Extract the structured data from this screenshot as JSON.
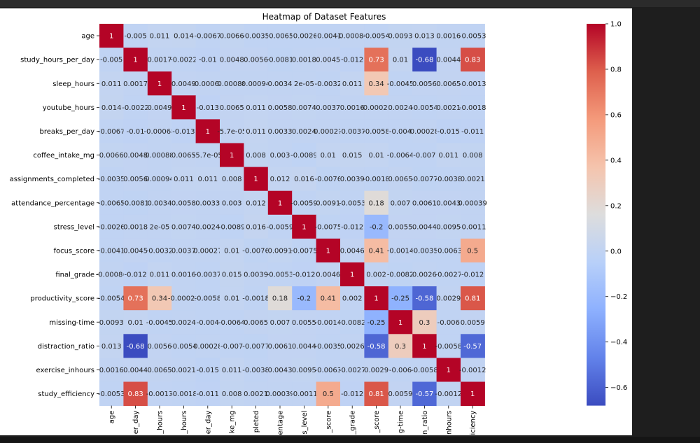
{
  "chart_data": {
    "type": "heatmap",
    "title": "Heatmap of Dataset Features",
    "colormap": "coolwarm",
    "color_range": [
      -0.68,
      1.0
    ],
    "colorbar_ticks": [
      1.0,
      0.8,
      0.6,
      0.4,
      0.2,
      0.0,
      -0.2,
      -0.4,
      -0.6
    ],
    "colorbar_tick_labels": [
      "1.0",
      "0.8",
      "0.6",
      "0.4",
      "0.2",
      "0.0",
      "−0.2",
      "−0.4",
      "−0.6"
    ],
    "row_labels": [
      "age",
      "study_hours_per_day",
      "sleep_hours",
      "youtube_hours",
      "breaks_per_day",
      "coffee_intake_mg",
      "assignments_completed",
      "attendance_percentage",
      "stress_level",
      "focus_score",
      "final_grade",
      "productivity_score",
      "missing-time",
      "distraction_ratio",
      "exercise_inhours",
      "study_efficiency"
    ],
    "column_labels_visible": [
      "age",
      "er_day",
      "_hours",
      "_hours",
      "er_day",
      "ke_mg",
      "pleted",
      "entage",
      "s_level",
      "_score",
      "_grade",
      "_score",
      "g-time",
      "n_ratio",
      "nhours",
      "iciency"
    ],
    "values": [
      [
        1,
        -0.005,
        0.011,
        0.014,
        -0.0067,
        0.0066,
        -0.0035,
        -0.0065,
        -0.0026,
        -0.0041,
        -0.00086,
        -0.0054,
        0.0093,
        0.013,
        0.0016,
        -0.0053
      ],
      [
        -0.005,
        1,
        0.0017,
        -0.0022,
        -0.01,
        0.0048,
        0.0056,
        -0.0081,
        0.0018,
        0.0045,
        -0.012,
        0.73,
        0.01,
        -0.68,
        0.0044,
        0.83
      ],
      [
        0.011,
        0.0017,
        1,
        0.0049,
        -0.00068,
        0.00088,
        0.00094,
        0.0034,
        2e-05,
        -0.0032,
        0.011,
        0.34,
        -0.0045,
        0.0056,
        0.0065,
        -0.0013
      ],
      [
        0.014,
        -0.0022,
        0.0049,
        1,
        -0.013,
        0.0065,
        0.011,
        0.0058,
        0.0074,
        0.0037,
        0.0016,
        -0.00022,
        0.0024,
        -0.0054,
        0.0021,
        -0.0018
      ],
      [
        -0.0067,
        -0.01,
        -0.00068,
        -0.013,
        1,
        -5.7e-05,
        0.011,
        0.0033,
        0.0024,
        0.00027,
        -0.0037,
        -0.0058,
        -0.004,
        0.00028,
        -0.015,
        -0.011
      ],
      [
        0.0066,
        0.0048,
        0.00088,
        0.0065,
        -5.7e-05,
        1,
        0.008,
        0.003,
        -0.0089,
        0.01,
        0.015,
        0.01,
        -0.0064,
        -0.007,
        0.011,
        0.008
      ],
      [
        -0.0035,
        0.0056,
        0.00094,
        0.011,
        0.011,
        0.008,
        1,
        0.012,
        0.016,
        -0.0076,
        0.0039,
        -0.0018,
        0.0065,
        -0.0077,
        -0.0038,
        0.0021
      ],
      [
        -0.0065,
        -0.0081,
        0.0034,
        0.0058,
        0.0033,
        0.003,
        0.012,
        1,
        -0.0059,
        0.0091,
        -0.0053,
        0.18,
        0.007,
        0.0061,
        0.0043,
        0.00039
      ],
      [
        -0.0026,
        0.0018,
        2e-05,
        0.0074,
        0.0024,
        -0.0089,
        0.016,
        -0.0059,
        1,
        -0.0075,
        -0.012,
        -0.2,
        0.0055,
        0.0044,
        0.0095,
        -0.0011
      ],
      [
        -0.0041,
        0.0045,
        -0.0032,
        0.0037,
        0.00027,
        0.01,
        -0.0076,
        0.0091,
        -0.0075,
        1,
        0.0046,
        0.41,
        -0.0014,
        -0.0035,
        -0.0063,
        0.5
      ],
      [
        -0.00086,
        -0.012,
        0.011,
        0.0016,
        -0.0037,
        0.015,
        0.0039,
        -0.0053,
        -0.012,
        0.0046,
        1,
        0.002,
        -0.0082,
        0.0026,
        -0.0027,
        -0.012
      ],
      [
        -0.0054,
        0.73,
        0.34,
        -0.00022,
        -0.0058,
        0.01,
        -0.0018,
        0.18,
        -0.2,
        0.41,
        0.002,
        1,
        -0.25,
        -0.58,
        0.0029,
        0.81
      ],
      [
        0.0093,
        0.01,
        -0.0045,
        0.0024,
        -0.004,
        -0.0064,
        0.0065,
        0.007,
        0.0055,
        -0.0014,
        -0.0082,
        -0.25,
        1,
        0.3,
        -0.006,
        0.0059
      ],
      [
        0.013,
        -0.68,
        0.0056,
        -0.0054,
        0.00028,
        -0.007,
        -0.0077,
        0.0061,
        0.0044,
        -0.0035,
        0.0026,
        -0.58,
        0.3,
        1,
        -0.0058,
        -0.57
      ],
      [
        0.0016,
        0.0044,
        0.0065,
        0.0021,
        -0.015,
        0.011,
        -0.0038,
        0.0043,
        0.0095,
        -0.0063,
        -0.0027,
        0.0029,
        -0.006,
        -0.0058,
        1,
        -0.0012
      ],
      [
        -0.0053,
        0.83,
        -0.0013,
        -0.0018,
        -0.011,
        0.008,
        0.0021,
        0.00039,
        -0.0011,
        0.5,
        -0.012,
        0.81,
        0.0059,
        -0.57,
        -0.0012,
        1
      ]
    ],
    "cell_labels": [
      [
        "1",
        "-0.005",
        "0.011",
        "0.014",
        "-0.0067",
        "0.0066",
        "-0.0035",
        "-0.0065",
        "-0.0026",
        "-0.0041",
        "-0.00086",
        "-0.0054",
        "0.0093",
        "0.013",
        "0.0016",
        "-0.0053"
      ],
      [
        "-0.005",
        "1",
        "0.0017",
        "-0.0022",
        "-0.01",
        "0.0048",
        "0.0056",
        "-0.0081",
        "0.0018",
        "0.0045",
        "-0.012",
        "0.73",
        "0.01",
        "-0.68",
        "0.0044",
        "0.83"
      ],
      [
        "0.011",
        "0.0017",
        "1",
        "0.0049",
        "-0.00068",
        "0.00088",
        "0.00094",
        "0.0034",
        "2e-05",
        "-0.0032",
        "0.011",
        "0.34",
        "-0.0045",
        "0.0056",
        "0.0065",
        "-0.0013"
      ],
      [
        "0.014",
        "-0.0022",
        "0.0049",
        "1",
        "-0.013",
        "0.0065",
        "0.011",
        "0.0058",
        "0.0074",
        "0.0037",
        "0.0016",
        "-0.00022",
        "0.0024",
        "-0.0054",
        "0.0021",
        "-0.0018"
      ],
      [
        "-0.0067",
        "-0.01",
        "-0.00068",
        "-0.013",
        "1",
        "-5.7e-05",
        "0.011",
        "0.0033",
        "0.0024",
        "0.00027",
        "-0.0037",
        "-0.0058",
        "-0.004",
        "0.00028",
        "-0.015",
        "-0.011"
      ],
      [
        "0.0066",
        "0.0048",
        "0.00088",
        "0.0065",
        "-5.7e-05",
        "1",
        "0.008",
        "0.003",
        "-0.0089",
        "0.01",
        "0.015",
        "0.01",
        "-0.0064",
        "-0.007",
        "0.011",
        "0.008"
      ],
      [
        "-0.0035",
        "0.0056",
        "0.00094",
        "0.011",
        "0.011",
        "0.008",
        "1",
        "0.012",
        "0.016",
        "-0.0076",
        "0.0039",
        "-0.0018",
        "0.0065",
        "-0.0077",
        "-0.0038",
        "0.0021"
      ],
      [
        "-0.0065",
        "-0.0081",
        "0.0034",
        "0.0058",
        "0.0033",
        "0.003",
        "0.012",
        "1",
        "-0.0059",
        "0.0091",
        "-0.0053",
        "0.18",
        "0.007",
        "0.0061",
        "0.0043",
        "0.00039"
      ],
      [
        "-0.0026",
        "0.0018",
        "2e-05",
        "0.0074",
        "0.0024",
        "-0.0089",
        "0.016",
        "-0.0059",
        "1",
        "-0.0075",
        "-0.012",
        "-0.2",
        "0.0055",
        "0.0044",
        "0.0095",
        "-0.0011"
      ],
      [
        "-0.0041",
        "0.0045",
        "-0.0032",
        "0.0037",
        "0.00027",
        "0.01",
        "-0.0076",
        "0.0091",
        "-0.0075",
        "1",
        "0.0046",
        "0.41",
        "-0.0014",
        "-0.0035",
        "-0.0063",
        "0.5"
      ],
      [
        "-0.00086",
        "-0.012",
        "0.011",
        "0.0016",
        "-0.0037",
        "0.015",
        "0.0039",
        "-0.0053",
        "-0.012",
        "0.0046",
        "1",
        "0.002",
        "-0.0082",
        "0.0026",
        "-0.0027",
        "-0.012"
      ],
      [
        "-0.0054",
        "0.73",
        "0.34",
        "-0.00022",
        "-0.0058",
        "0.01",
        "-0.0018",
        "0.18",
        "-0.2",
        "0.41",
        "0.002",
        "1",
        "-0.25",
        "-0.58",
        "0.0029",
        "0.81"
      ],
      [
        "0.0093",
        "0.01",
        "-0.0045",
        "0.0024",
        "-0.004",
        "-0.0064",
        "0.0065",
        "0.007",
        "0.0055",
        "-0.0014",
        "-0.0082",
        "-0.25",
        "1",
        "0.3",
        "-0.006",
        "0.0059"
      ],
      [
        "0.013",
        "-0.68",
        "0.0056",
        "-0.0054",
        "0.00028",
        "-0.007",
        "-0.0077",
        "0.0061",
        "0.0044",
        "-0.0035",
        "0.0026",
        "-0.58",
        "0.3",
        "1",
        "-0.0058",
        "-0.57"
      ],
      [
        "0.0016",
        "0.0044",
        "0.0065",
        "0.0021",
        "-0.015",
        "0.011",
        "-0.0038",
        "0.0043",
        "0.0095",
        "-0.0063",
        "-0.0027",
        "0.0029",
        "-0.006",
        "-0.0058",
        "1",
        "-0.0012"
      ],
      [
        "-0.0053",
        "0.83",
        "-0.0013",
        "-0.0018",
        "-0.011",
        "0.008",
        "0.0021",
        "0.00039",
        "-0.0011",
        "0.5",
        "-0.012",
        "0.81",
        "0.0059",
        "-0.57",
        "-0.0012",
        "1"
      ]
    ]
  }
}
